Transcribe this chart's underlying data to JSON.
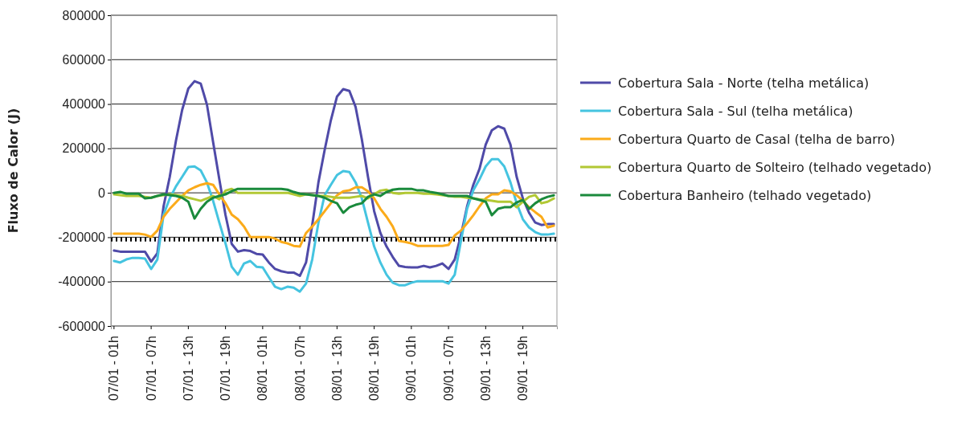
{
  "chart_data": {
    "type": "line",
    "ylabel": "Fluxo de Calor (J)",
    "categories": [
      "07/01 - 01h",
      null,
      null,
      null,
      null,
      null,
      "07/01 - 07h",
      null,
      null,
      null,
      null,
      null,
      "07/01 - 13h",
      null,
      null,
      null,
      null,
      null,
      "07/01 - 19h",
      null,
      null,
      null,
      null,
      null,
      "08/01 - 01h",
      null,
      null,
      null,
      null,
      null,
      "08/01 - 07h",
      null,
      null,
      null,
      null,
      null,
      "08/01 - 13h",
      null,
      null,
      null,
      null,
      null,
      "08/01 - 19h",
      null,
      null,
      null,
      null,
      null,
      "09/01 - 01h",
      null,
      null,
      null,
      null,
      null,
      "09/01 - 07h",
      null,
      null,
      null,
      null,
      null,
      "09/01 - 13h",
      null,
      null,
      null,
      null,
      null,
      "09/01 - 19h",
      null,
      null,
      null,
      null,
      null
    ],
    "ylim": [
      -600000,
      800000
    ],
    "yticks": [
      -600000,
      -400000,
      -200000,
      0,
      200000,
      400000,
      600000,
      800000
    ],
    "grid": "y",
    "legend": "right",
    "ref_lines": [
      {
        "axis": "y",
        "value": -210000,
        "line_style": "dotted",
        "color": "#000000"
      }
    ],
    "series": [
      {
        "name": "Cobertura Sala - Norte (telha metálica)",
        "color": "#4f4aa8",
        "values": [
          -260000,
          -265000,
          -265000,
          -265000,
          -265000,
          -265000,
          -310000,
          -272000,
          -61000,
          72000,
          235000,
          373000,
          470000,
          503000,
          492000,
          398000,
          228000,
          61000,
          -100000,
          -230000,
          -265000,
          -258000,
          -262000,
          -275000,
          -278000,
          -314000,
          -343000,
          -353000,
          -359000,
          -359000,
          -374000,
          -314000,
          -145000,
          47000,
          192000,
          326000,
          434000,
          467000,
          459000,
          387000,
          242000,
          72000,
          -83000,
          -181000,
          -242000,
          -289000,
          -329000,
          -334000,
          -336000,
          -336000,
          -329000,
          -336000,
          -329000,
          -318000,
          -343000,
          -300000,
          -192000,
          -61000,
          36000,
          108000,
          217000,
          282000,
          300000,
          289000,
          217000,
          72000,
          -25000,
          -90000,
          -134000,
          -145000,
          -141000,
          -141000
        ]
      },
      {
        "name": "Cobertura Sala - Sul (telha metálica)",
        "color": "#45c4e0",
        "values": [
          -307000,
          -314000,
          -300000,
          -293000,
          -293000,
          -296000,
          -343000,
          -300000,
          -98000,
          -25000,
          29000,
          72000,
          116000,
          119000,
          101000,
          47000,
          -36000,
          -134000,
          -228000,
          -333000,
          -369000,
          -318000,
          -307000,
          -333000,
          -336000,
          -380000,
          -423000,
          -434000,
          -423000,
          -427000,
          -445000,
          -409000,
          -300000,
          -134000,
          -11000,
          36000,
          80000,
          98000,
          94000,
          47000,
          -25000,
          -134000,
          -242000,
          -314000,
          -369000,
          -405000,
          -416000,
          -416000,
          -405000,
          -398000,
          -398000,
          -398000,
          -398000,
          -398000,
          -409000,
          -369000,
          -217000,
          -72000,
          11000,
          61000,
          119000,
          152000,
          152000,
          119000,
          47000,
          -47000,
          -119000,
          -156000,
          -177000,
          -188000,
          -188000,
          -184000
        ]
      },
      {
        "name": "Cobertura Quarto de Casal (telha de barro)",
        "color": "#fbab1a",
        "values": [
          -184000,
          -184000,
          -184000,
          -184000,
          -184000,
          -188000,
          -199000,
          -170000,
          -108000,
          -72000,
          -43000,
          -14000,
          11000,
          25000,
          36000,
          43000,
          36000,
          -7000,
          -47000,
          -98000,
          -119000,
          -152000,
          -199000,
          -199000,
          -199000,
          -199000,
          -206000,
          -221000,
          -228000,
          -239000,
          -242000,
          -181000,
          -152000,
          -119000,
          -83000,
          -47000,
          -11000,
          7000,
          11000,
          25000,
          25000,
          7000,
          -25000,
          -72000,
          -108000,
          -152000,
          -217000,
          -221000,
          -228000,
          -239000,
          -239000,
          -239000,
          -239000,
          -239000,
          -235000,
          -192000,
          -170000,
          -137000,
          -101000,
          -61000,
          -25000,
          -7000,
          -7000,
          11000,
          7000,
          -11000,
          -36000,
          -65000,
          -87000,
          -108000,
          -156000,
          -148000
        ]
      },
      {
        "name": "Cobertura Quarto de Solteiro (telhado vegetado)",
        "color": "#b2c834",
        "values": [
          -7000,
          -10000,
          -14000,
          -14000,
          -14000,
          -18000,
          -22000,
          -14000,
          -10000,
          -7000,
          -10000,
          -14000,
          -22000,
          -29000,
          -36000,
          -25000,
          -14000,
          -29000,
          10000,
          18000,
          0,
          0,
          0,
          0,
          0,
          0,
          0,
          0,
          0,
          -7000,
          -14000,
          -7000,
          -10000,
          -14000,
          -14000,
          -18000,
          -22000,
          -22000,
          -22000,
          -18000,
          -14000,
          -25000,
          -7000,
          10000,
          14000,
          0,
          -4000,
          0,
          0,
          0,
          -4000,
          -4000,
          -7000,
          -10000,
          -14000,
          -18000,
          -18000,
          -22000,
          -25000,
          -29000,
          -32000,
          -36000,
          -40000,
          -40000,
          -40000,
          -65000,
          -40000,
          -18000,
          -10000,
          -47000,
          -40000,
          -25000
        ]
      },
      {
        "name": "Cobertura Banheiro (telhado vegetado)",
        "color": "#1a8a3c",
        "values": [
          0,
          4000,
          -4000,
          -4000,
          -4000,
          -25000,
          -22000,
          -14000,
          -7000,
          -10000,
          -14000,
          -22000,
          -40000,
          -116000,
          -72000,
          -40000,
          -22000,
          -14000,
          -7000,
          7000,
          18000,
          18000,
          18000,
          18000,
          18000,
          18000,
          18000,
          18000,
          14000,
          4000,
          -4000,
          -7000,
          -10000,
          -14000,
          -22000,
          -36000,
          -47000,
          -90000,
          -65000,
          -54000,
          -47000,
          -18000,
          -7000,
          -14000,
          4000,
          14000,
          18000,
          18000,
          18000,
          11000,
          11000,
          4000,
          0,
          -7000,
          -14000,
          -14000,
          -14000,
          -14000,
          -25000,
          -32000,
          -40000,
          -101000,
          -72000,
          -65000,
          -65000,
          -43000,
          -32000,
          -72000,
          -47000,
          -29000,
          -18000,
          -11000
        ]
      }
    ]
  }
}
